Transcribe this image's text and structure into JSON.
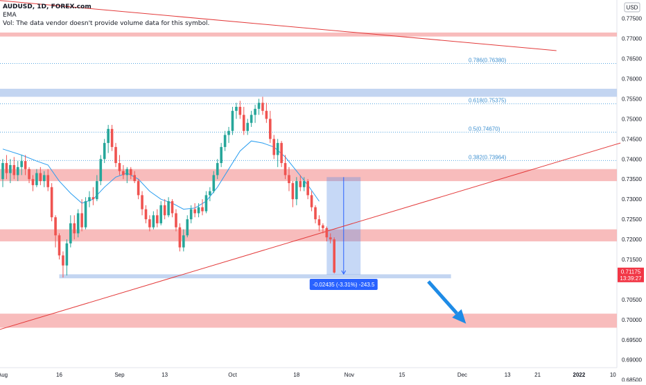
{
  "header": {
    "symbol_line": "AUDUSD, 1D, FOREX.com",
    "ema_line": "EMA",
    "vol_line": "Vol: The data vendor doesn't provide volume data for this symbol."
  },
  "chart_data": {
    "type": "candlestick",
    "symbol": "AUDUSD",
    "interval": "1D",
    "source": "FOREX.com",
    "currency_badge": "USD",
    "price_axis": {
      "ylim": [
        0.6846,
        0.7796
      ],
      "ticks": [
        "0.77500",
        "0.77000",
        "0.76500",
        "0.76000",
        "0.75500",
        "0.75000",
        "0.74500",
        "0.74000",
        "0.73500",
        "0.73000",
        "0.72500",
        "0.72000",
        "0.71500",
        "0.71000",
        "0.70500",
        "0.70000",
        "0.69500",
        "0.69000",
        "0.68500"
      ]
    },
    "time_axis": {
      "labels": [
        {
          "label": "Aug",
          "day": 0
        },
        {
          "label": "16",
          "day": 15
        },
        {
          "label": "Sep",
          "day": 31
        },
        {
          "label": "13",
          "day": 43
        },
        {
          "label": "Oct",
          "day": 61
        },
        {
          "label": "18",
          "day": 78
        },
        {
          "label": "Nov",
          "day": 92
        },
        {
          "label": "15",
          "day": 106
        },
        {
          "label": "Dec",
          "day": 122
        },
        {
          "label": "13",
          "day": 134
        },
        {
          "label": "21",
          "day": 142
        },
        {
          "label": "2022",
          "day": 153
        },
        {
          "label": "10",
          "day": 162
        }
      ]
    },
    "candles": [
      {
        "day": 0,
        "o": 0.735,
        "h": 0.74,
        "l": 0.733,
        "c": 0.739
      },
      {
        "day": 1,
        "o": 0.739,
        "h": 0.741,
        "l": 0.735,
        "c": 0.7365
      },
      {
        "day": 2,
        "o": 0.7365,
        "h": 0.74,
        "l": 0.734,
        "c": 0.7385
      },
      {
        "day": 3,
        "o": 0.7385,
        "h": 0.7405,
        "l": 0.735,
        "c": 0.736
      },
      {
        "day": 4,
        "o": 0.736,
        "h": 0.7395,
        "l": 0.7345,
        "c": 0.738
      },
      {
        "day": 5,
        "o": 0.738,
        "h": 0.741,
        "l": 0.736,
        "c": 0.7395
      },
      {
        "day": 6,
        "o": 0.7395,
        "h": 0.741,
        "l": 0.736,
        "c": 0.7375
      },
      {
        "day": 7,
        "o": 0.7375,
        "h": 0.738,
        "l": 0.734,
        "c": 0.735
      },
      {
        "day": 8,
        "o": 0.735,
        "h": 0.736,
        "l": 0.732,
        "c": 0.7335
      },
      {
        "day": 9,
        "o": 0.7335,
        "h": 0.7375,
        "l": 0.733,
        "c": 0.7365
      },
      {
        "day": 10,
        "o": 0.7365,
        "h": 0.738,
        "l": 0.7335,
        "c": 0.7345
      },
      {
        "day": 11,
        "o": 0.7345,
        "h": 0.737,
        "l": 0.733,
        "c": 0.736
      },
      {
        "day": 12,
        "o": 0.736,
        "h": 0.7375,
        "l": 0.732,
        "c": 0.733
      },
      {
        "day": 13,
        "o": 0.733,
        "h": 0.734,
        "l": 0.7245,
        "c": 0.7255
      },
      {
        "day": 14,
        "o": 0.7255,
        "h": 0.726,
        "l": 0.718,
        "c": 0.721
      },
      {
        "day": 15,
        "o": 0.721,
        "h": 0.7215,
        "l": 0.715,
        "c": 0.716
      },
      {
        "day": 16,
        "o": 0.716,
        "h": 0.717,
        "l": 0.7105,
        "c": 0.7135
      },
      {
        "day": 17,
        "o": 0.7135,
        "h": 0.72,
        "l": 0.711,
        "c": 0.719
      },
      {
        "day": 18,
        "o": 0.719,
        "h": 0.726,
        "l": 0.718,
        "c": 0.724
      },
      {
        "day": 19,
        "o": 0.724,
        "h": 0.726,
        "l": 0.72,
        "c": 0.7215
      },
      {
        "day": 20,
        "o": 0.7215,
        "h": 0.7275,
        "l": 0.7205,
        "c": 0.7265
      },
      {
        "day": 21,
        "o": 0.7265,
        "h": 0.73,
        "l": 0.722,
        "c": 0.723
      },
      {
        "day": 22,
        "o": 0.723,
        "h": 0.7305,
        "l": 0.7225,
        "c": 0.7295
      },
      {
        "day": 23,
        "o": 0.7295,
        "h": 0.732,
        "l": 0.728,
        "c": 0.7305
      },
      {
        "day": 24,
        "o": 0.7305,
        "h": 0.733,
        "l": 0.7285,
        "c": 0.73
      },
      {
        "day": 25,
        "o": 0.73,
        "h": 0.736,
        "l": 0.7295,
        "c": 0.7345
      },
      {
        "day": 26,
        "o": 0.7345,
        "h": 0.741,
        "l": 0.7335,
        "c": 0.74
      },
      {
        "day": 27,
        "o": 0.74,
        "h": 0.745,
        "l": 0.739,
        "c": 0.744
      },
      {
        "day": 28,
        "o": 0.744,
        "h": 0.7485,
        "l": 0.7415,
        "c": 0.7475
      },
      {
        "day": 29,
        "o": 0.7475,
        "h": 0.7485,
        "l": 0.742,
        "c": 0.743
      },
      {
        "day": 30,
        "o": 0.743,
        "h": 0.744,
        "l": 0.738,
        "c": 0.739
      },
      {
        "day": 31,
        "o": 0.739,
        "h": 0.741,
        "l": 0.736,
        "c": 0.737
      },
      {
        "day": 32,
        "o": 0.737,
        "h": 0.7385,
        "l": 0.735,
        "c": 0.736
      },
      {
        "day": 33,
        "o": 0.736,
        "h": 0.738,
        "l": 0.734,
        "c": 0.7375
      },
      {
        "day": 34,
        "o": 0.7375,
        "h": 0.738,
        "l": 0.735,
        "c": 0.736
      },
      {
        "day": 35,
        "o": 0.736,
        "h": 0.737,
        "l": 0.734,
        "c": 0.7345
      },
      {
        "day": 36,
        "o": 0.7345,
        "h": 0.735,
        "l": 0.73,
        "c": 0.731
      },
      {
        "day": 37,
        "o": 0.731,
        "h": 0.732,
        "l": 0.726,
        "c": 0.7275
      },
      {
        "day": 38,
        "o": 0.7275,
        "h": 0.7285,
        "l": 0.724,
        "c": 0.725
      },
      {
        "day": 39,
        "o": 0.725,
        "h": 0.726,
        "l": 0.722,
        "c": 0.723
      },
      {
        "day": 40,
        "o": 0.723,
        "h": 0.727,
        "l": 0.7225,
        "c": 0.726
      },
      {
        "day": 41,
        "o": 0.726,
        "h": 0.7275,
        "l": 0.723,
        "c": 0.724
      },
      {
        "day": 42,
        "o": 0.724,
        "h": 0.7295,
        "l": 0.7235,
        "c": 0.7285
      },
      {
        "day": 43,
        "o": 0.7285,
        "h": 0.73,
        "l": 0.725,
        "c": 0.726
      },
      {
        "day": 44,
        "o": 0.726,
        "h": 0.7305,
        "l": 0.7255,
        "c": 0.7295
      },
      {
        "day": 45,
        "o": 0.7295,
        "h": 0.73,
        "l": 0.7255,
        "c": 0.7265
      },
      {
        "day": 46,
        "o": 0.7265,
        "h": 0.7275,
        "l": 0.722,
        "c": 0.723
      },
      {
        "day": 47,
        "o": 0.723,
        "h": 0.724,
        "l": 0.717,
        "c": 0.718
      },
      {
        "day": 48,
        "o": 0.718,
        "h": 0.7225,
        "l": 0.717,
        "c": 0.721
      },
      {
        "day": 49,
        "o": 0.721,
        "h": 0.726,
        "l": 0.7205,
        "c": 0.725
      },
      {
        "day": 50,
        "o": 0.725,
        "h": 0.7285,
        "l": 0.724,
        "c": 0.7275
      },
      {
        "day": 51,
        "o": 0.7275,
        "h": 0.729,
        "l": 0.7255,
        "c": 0.7265
      },
      {
        "day": 52,
        "o": 0.7265,
        "h": 0.729,
        "l": 0.7255,
        "c": 0.728
      },
      {
        "day": 53,
        "o": 0.728,
        "h": 0.73,
        "l": 0.726,
        "c": 0.727
      },
      {
        "day": 54,
        "o": 0.727,
        "h": 0.732,
        "l": 0.7265,
        "c": 0.731
      },
      {
        "day": 55,
        "o": 0.731,
        "h": 0.733,
        "l": 0.7295,
        "c": 0.732
      },
      {
        "day": 56,
        "o": 0.732,
        "h": 0.737,
        "l": 0.7315,
        "c": 0.736
      },
      {
        "day": 57,
        "o": 0.736,
        "h": 0.74,
        "l": 0.735,
        "c": 0.739
      },
      {
        "day": 58,
        "o": 0.739,
        "h": 0.744,
        "l": 0.738,
        "c": 0.743
      },
      {
        "day": 59,
        "o": 0.743,
        "h": 0.747,
        "l": 0.742,
        "c": 0.746
      },
      {
        "day": 60,
        "o": 0.746,
        "h": 0.748,
        "l": 0.744,
        "c": 0.747
      },
      {
        "day": 61,
        "o": 0.747,
        "h": 0.753,
        "l": 0.746,
        "c": 0.752
      },
      {
        "day": 62,
        "o": 0.752,
        "h": 0.754,
        "l": 0.75,
        "c": 0.753
      },
      {
        "day": 63,
        "o": 0.753,
        "h": 0.7545,
        "l": 0.75,
        "c": 0.751
      },
      {
        "day": 64,
        "o": 0.751,
        "h": 0.753,
        "l": 0.746,
        "c": 0.747
      },
      {
        "day": 65,
        "o": 0.747,
        "h": 0.75,
        "l": 0.746,
        "c": 0.749
      },
      {
        "day": 66,
        "o": 0.749,
        "h": 0.752,
        "l": 0.748,
        "c": 0.751
      },
      {
        "day": 67,
        "o": 0.751,
        "h": 0.7535,
        "l": 0.749,
        "c": 0.7525
      },
      {
        "day": 68,
        "o": 0.7525,
        "h": 0.755,
        "l": 0.751,
        "c": 0.754
      },
      {
        "day": 69,
        "o": 0.754,
        "h": 0.7555,
        "l": 0.751,
        "c": 0.752
      },
      {
        "day": 70,
        "o": 0.752,
        "h": 0.754,
        "l": 0.749,
        "c": 0.75
      },
      {
        "day": 71,
        "o": 0.75,
        "h": 0.752,
        "l": 0.744,
        "c": 0.745
      },
      {
        "day": 72,
        "o": 0.745,
        "h": 0.746,
        "l": 0.74,
        "c": 0.741
      },
      {
        "day": 73,
        "o": 0.741,
        "h": 0.745,
        "l": 0.738,
        "c": 0.744
      },
      {
        "day": 74,
        "o": 0.744,
        "h": 0.7445,
        "l": 0.738,
        "c": 0.739
      },
      {
        "day": 75,
        "o": 0.739,
        "h": 0.741,
        "l": 0.735,
        "c": 0.736
      },
      {
        "day": 76,
        "o": 0.736,
        "h": 0.738,
        "l": 0.732,
        "c": 0.734
      },
      {
        "day": 77,
        "o": 0.734,
        "h": 0.7345,
        "l": 0.728,
        "c": 0.73
      },
      {
        "day": 78,
        "o": 0.73,
        "h": 0.7355,
        "l": 0.7285,
        "c": 0.7345
      },
      {
        "day": 79,
        "o": 0.7345,
        "h": 0.736,
        "l": 0.732,
        "c": 0.733
      },
      {
        "day": 80,
        "o": 0.733,
        "h": 0.7355,
        "l": 0.732,
        "c": 0.7345
      },
      {
        "day": 81,
        "o": 0.7345,
        "h": 0.735,
        "l": 0.73,
        "c": 0.731
      },
      {
        "day": 82,
        "o": 0.731,
        "h": 0.732,
        "l": 0.727,
        "c": 0.728
      },
      {
        "day": 83,
        "o": 0.728,
        "h": 0.7285,
        "l": 0.724,
        "c": 0.725
      },
      {
        "day": 84,
        "o": 0.725,
        "h": 0.726,
        "l": 0.722,
        "c": 0.7235
      },
      {
        "day": 85,
        "o": 0.7235,
        "h": 0.724,
        "l": 0.7215,
        "c": 0.7228
      },
      {
        "day": 86,
        "o": 0.7228,
        "h": 0.7232,
        "l": 0.7195,
        "c": 0.7205
      },
      {
        "day": 87,
        "o": 0.7205,
        "h": 0.7215,
        "l": 0.719,
        "c": 0.72
      },
      {
        "day": 88,
        "o": 0.72,
        "h": 0.7205,
        "l": 0.7115,
        "c": 0.71175
      }
    ],
    "ema": {
      "label": "EMA",
      "points": [
        {
          "day": 0,
          "v": 0.7425
        },
        {
          "day": 5,
          "v": 0.741
        },
        {
          "day": 9,
          "v": 0.7395
        },
        {
          "day": 12,
          "v": 0.7385
        },
        {
          "day": 15,
          "v": 0.7345
        },
        {
          "day": 18,
          "v": 0.7315
        },
        {
          "day": 21,
          "v": 0.729
        },
        {
          "day": 24,
          "v": 0.73
        },
        {
          "day": 27,
          "v": 0.733
        },
        {
          "day": 30,
          "v": 0.7355
        },
        {
          "day": 33,
          "v": 0.7365
        },
        {
          "day": 36,
          "v": 0.735
        },
        {
          "day": 39,
          "v": 0.732
        },
        {
          "day": 42,
          "v": 0.73
        },
        {
          "day": 45,
          "v": 0.729
        },
        {
          "day": 48,
          "v": 0.7275
        },
        {
          "day": 51,
          "v": 0.7278
        },
        {
          "day": 54,
          "v": 0.7295
        },
        {
          "day": 57,
          "v": 0.733
        },
        {
          "day": 60,
          "v": 0.7375
        },
        {
          "day": 63,
          "v": 0.742
        },
        {
          "day": 66,
          "v": 0.7445
        },
        {
          "day": 69,
          "v": 0.744
        },
        {
          "day": 72,
          "v": 0.743
        },
        {
          "day": 75,
          "v": 0.7405
        },
        {
          "day": 78,
          "v": 0.737
        },
        {
          "day": 81,
          "v": 0.7335
        },
        {
          "day": 84,
          "v": 0.7295
        }
      ]
    },
    "zones": [
      {
        "color": "#f7b5b5",
        "from_day": -1,
        "to_day": 164,
        "low": 0.7705,
        "high": 0.7715
      },
      {
        "color": "#bcd0ef",
        "from_day": -1,
        "to_day": 164,
        "low": 0.7555,
        "high": 0.7575
      },
      {
        "color": "#f7b5b5",
        "from_day": -1,
        "to_day": 164,
        "low": 0.7345,
        "high": 0.7375
      },
      {
        "color": "#f7b5b5",
        "from_day": -1,
        "to_day": 164,
        "low": 0.7195,
        "high": 0.7225
      },
      {
        "color": "#f7b5b5",
        "from_day": -1,
        "to_day": 164,
        "low": 0.698,
        "high": 0.7015
      },
      {
        "color": "#bcd0ef",
        "from_day": 15,
        "to_day": 119,
        "low": 0.7103,
        "high": 0.7113
      }
    ],
    "fib_levels": [
      {
        "price": 0.7638,
        "label": "0.786(0.76380)"
      },
      {
        "price": 0.75375,
        "label": "0.618(0.75375)"
      },
      {
        "price": 0.7467,
        "label": "0.5(0.74670)"
      },
      {
        "price": 0.73964,
        "label": "0.382(0.73964)"
      }
    ],
    "trendlines": [
      {
        "color": "#e33a3a",
        "from": {
          "day": -1,
          "v": 0.7795
        },
        "to": {
          "day": 147,
          "v": 0.767
        }
      },
      {
        "color": "#e33a3a",
        "from": {
          "day": -1,
          "v": 0.6975
        },
        "to": {
          "day": 164,
          "v": 0.744
        }
      }
    ],
    "measure": {
      "from_day": 86,
      "to_day": 95,
      "top": 0.7355,
      "bottom": 0.7112,
      "label": "-0.02435 (-3.31%) -243.5"
    },
    "projection_arrow": {
      "color": "#1e8be6",
      "from": {
        "day": 113,
        "v": 0.7095
      },
      "to": {
        "day": 123,
        "v": 0.699
      }
    },
    "last_price": {
      "value": "0.71175",
      "countdown": "13:39:27",
      "color": "#f23645"
    },
    "colors": {
      "up": "#26a69a",
      "down": "#ef5350",
      "ema": "#2a9ef0",
      "fib": "#55a6e0",
      "fib_text": "#3c8fd0",
      "measure_fill": "#5b8ee6",
      "measure_label_bg": "#2962ff"
    }
  }
}
